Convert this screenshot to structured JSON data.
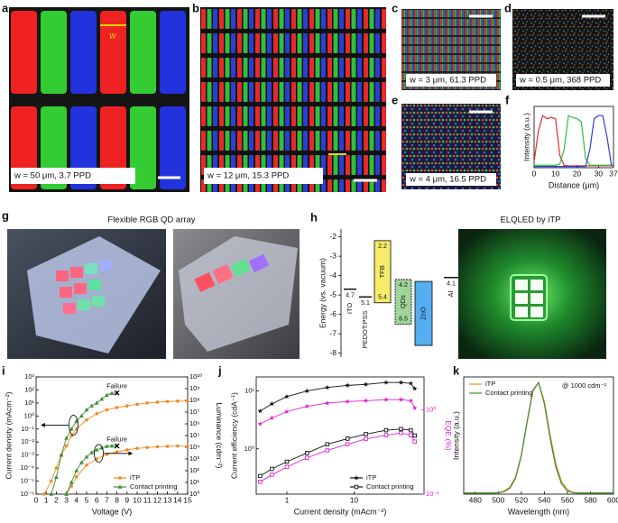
{
  "panels": {
    "a": {
      "label": "a",
      "annotation": "w",
      "caption": "w = 50 μm, 3.7 PPD"
    },
    "b": {
      "label": "b",
      "caption": "w = 12 μm, 15.3 PPD"
    },
    "c": {
      "label": "c",
      "caption": "w = 3 μm, 61.3 PPD"
    },
    "d": {
      "label": "d",
      "caption": "w = 0.5 μm, 368 PPD"
    },
    "e": {
      "label": "e",
      "caption": "w = 4 μm, 16.5 PPD"
    },
    "g": {
      "label": "g",
      "title": "Flexible RGB QD array"
    },
    "elqled": {
      "title": "ELQLED by iTP"
    }
  },
  "chart_data": [
    {
      "type": "line",
      "label": "f",
      "xlabel": "Distance (μm)",
      "ylabel": "Intensity (a.u.)",
      "x": [
        0,
        2,
        4,
        6,
        8,
        10,
        12,
        14,
        16,
        18,
        20,
        22,
        24,
        26,
        28,
        30,
        32,
        34,
        36,
        37
      ],
      "xlim": [
        0,
        37
      ],
      "xticks": [
        0,
        10,
        20,
        30,
        37
      ],
      "ylim": [
        0,
        1
      ],
      "series": [
        {
          "color": "#e8282b",
          "values": [
            0.1,
            0.6,
            0.85,
            0.8,
            0.82,
            0.8,
            0.2,
            0.04,
            0.03,
            0.03,
            0.03,
            0.03,
            0.03,
            0.03,
            0.03,
            0.03,
            0.03,
            0.03,
            0.03,
            0.03
          ]
        },
        {
          "color": "#2fbf3a",
          "values": [
            0.04,
            0.04,
            0.04,
            0.04,
            0.04,
            0.04,
            0.06,
            0.3,
            0.85,
            0.82,
            0.8,
            0.75,
            0.15,
            0.04,
            0.04,
            0.04,
            0.04,
            0.04,
            0.04,
            0.04
          ]
        },
        {
          "color": "#2a3fd6",
          "values": [
            0.02,
            0.02,
            0.02,
            0.02,
            0.02,
            0.02,
            0.02,
            0.02,
            0.02,
            0.02,
            0.02,
            0.02,
            0.02,
            0.3,
            0.8,
            0.85,
            0.85,
            0.5,
            0.05,
            0.03
          ]
        }
      ]
    },
    {
      "type": "energy",
      "label": "h",
      "ylabel": "Energy (vs. vacuum)",
      "ylim": [
        -8.2,
        -1.6
      ],
      "yticks": [
        -2,
        -3,
        -4,
        -5,
        -6,
        -7,
        -8
      ],
      "categories": [
        "ITO",
        "PEDOT:PSS",
        "TFB",
        "QDs",
        "ZnO",
        "Al"
      ],
      "top": [
        null,
        null,
        -2.2,
        -4.2,
        -4.3,
        null
      ],
      "bottom": [
        -4.7,
        -5.1,
        -5.4,
        -6.5,
        -7.6,
        -4.1
      ],
      "top_labels": [
        null,
        null,
        "2.2",
        "4.2",
        null,
        null
      ],
      "bottom_labels": [
        "4.7",
        "5.1",
        "5.4",
        "6.5",
        null,
        "4.1"
      ],
      "colors": [
        null,
        null,
        "#f5ec6a",
        "#9fd49a",
        "#55aef0",
        null
      ]
    },
    {
      "type": "line",
      "label": "i",
      "xlabel": "Voltage (V)",
      "ylabel": "Current density (mAcm⁻²)",
      "y2label": "Luminance (cdm⁻²)",
      "xlim": [
        0,
        15
      ],
      "xticks": [
        0,
        1,
        2,
        3,
        4,
        5,
        6,
        7,
        8,
        9,
        10,
        11,
        12,
        13,
        14,
        15
      ],
      "ylog": true,
      "ylim": [
        1e-06,
        1000
      ],
      "yticks": [
        {
          "value": 1e-06,
          "label": "10⁻⁶"
        },
        {
          "value": 1e-05,
          "label": "10⁻⁵"
        },
        {
          "value": 0.0001,
          "label": "10⁻⁴"
        },
        {
          "value": 0.001,
          "label": "10⁻³"
        },
        {
          "value": 0.01,
          "label": "10⁻²"
        },
        {
          "value": 0.1,
          "label": "10⁻¹"
        },
        {
          "value": 1,
          "label": "10⁰"
        },
        {
          "value": 10,
          "label": "10¹"
        },
        {
          "value": 100,
          "label": "10²"
        },
        {
          "value": 1000,
          "label": "10³"
        }
      ],
      "y2log": true,
      "y2lim": [
        1,
        10000000000
      ],
      "y2ticks": [
        {
          "value": 1,
          "label": "10⁰"
        },
        {
          "value": 10,
          "label": "10¹"
        },
        {
          "value": 100,
          "label": "10²"
        },
        {
          "value": 1000,
          "label": "10³"
        },
        {
          "value": 10000,
          "label": "10⁴"
        },
        {
          "value": 100000,
          "label": "10⁵"
        },
        {
          "value": 1000000,
          "label": "10⁶"
        },
        {
          "value": 10000000,
          "label": "10⁷"
        },
        {
          "value": 100000000,
          "label": "10⁸"
        },
        {
          "value": 1000000000,
          "label": "10⁹"
        },
        {
          "value": 10000000000,
          "label": "10¹⁰"
        }
      ],
      "legend": "lower right",
      "series": [
        {
          "name": "iTP",
          "color": "#f08a24",
          "marker": "circle",
          "x": [
            0.8,
            1.5,
            2,
            2.5,
            3,
            3.5,
            4,
            5,
            6,
            7,
            8,
            9,
            10,
            11,
            12,
            13,
            14,
            15
          ],
          "values": [
            1e-06,
            1e-05,
            0.0001,
            0.001,
            0.005,
            0.03,
            0.1,
            0.5,
            1.5,
            3,
            4.5,
            6,
            8,
            10,
            11.5,
            13,
            14,
            14
          ]
        },
        {
          "name": "Contact printing",
          "color": "#3a8f3a",
          "marker": "triangle",
          "end_label": "Failure",
          "x": [
            1.5,
            2,
            2.5,
            3,
            3.5,
            4,
            4.5,
            5,
            5.5,
            6,
            6.5,
            7,
            7.5,
            8
          ],
          "values": [
            1e-06,
            2e-05,
            0.001,
            0.02,
            0.1,
            0.4,
            1,
            3,
            6,
            10,
            20,
            40,
            55,
            60
          ]
        },
        {
          "color": "#f08a24",
          "marker": "circle",
          "axis": "y2",
          "x": [
            3,
            3.5,
            4,
            5,
            6,
            7,
            8,
            9,
            10,
            11,
            12,
            13,
            14,
            15
          ],
          "values": [
            1,
            5,
            30,
            300,
            1000,
            2500,
            4000,
            6000,
            8000,
            9500,
            11000,
            12000,
            13000,
            12000
          ]
        },
        {
          "color": "#3a8f3a",
          "marker": "triangle",
          "axis": "y2",
          "end_label": "Failure",
          "x": [
            3,
            3.5,
            4,
            4.5,
            5,
            5.5,
            6,
            6.5,
            7,
            7.5,
            8
          ],
          "values": [
            1,
            10,
            100,
            500,
            1500,
            3500,
            6000,
            9000,
            12000,
            13000,
            13000
          ]
        }
      ]
    },
    {
      "type": "line",
      "label": "j",
      "xlabel": "Current density (mAcm⁻²)",
      "ylabel": "Current efficiency (cdA⁻¹)",
      "y2label": "EQE (%)",
      "y2color": "#e020d0",
      "xlog": true,
      "xlim": [
        0.35,
        110
      ],
      "xticks": [
        1,
        10
      ],
      "ylog": true,
      "ylim": [
        0.165,
        17.5
      ],
      "yticks": [
        {
          "value": 1,
          "label": "10⁰"
        },
        {
          "value": 10,
          "label": "10¹"
        }
      ],
      "y2log": true,
      "y2lim": [
        0.1,
        2.45
      ],
      "y2ticks": [
        {
          "value": 0.1,
          "label": "10⁻¹"
        },
        {
          "value": 1,
          "label": "10⁰"
        }
      ],
      "legend": "lower right",
      "x": [
        0.4,
        0.6,
        1,
        2,
        4,
        8,
        15,
        30,
        50,
        70,
        80
      ],
      "series": [
        {
          "name": "iTP",
          "color": "#111111",
          "marker": "star",
          "values": [
            4.5,
            6,
            8,
            10,
            11.5,
            12.5,
            13,
            14,
            14,
            13.5,
            11
          ]
        },
        {
          "color": "#e020d0",
          "marker": "star",
          "axis": "y2",
          "values": [
            0.68,
            0.8,
            0.95,
            1.1,
            1.2,
            1.25,
            1.28,
            1.32,
            1.32,
            1.28,
            1.05
          ]
        },
        {
          "name": "Contact printing",
          "color": "#111111",
          "marker": "square",
          "values": [
            0.34,
            0.45,
            0.6,
            0.85,
            1.2,
            1.5,
            1.8,
            2.1,
            2.2,
            2.1,
            1.7
          ]
        },
        {
          "color": "#e020d0",
          "marker": "square",
          "axis": "y2",
          "values": [
            0.14,
            0.17,
            0.21,
            0.27,
            0.33,
            0.39,
            0.45,
            0.5,
            0.53,
            0.5,
            0.42
          ]
        }
      ]
    },
    {
      "type": "line",
      "label": "k",
      "xlabel": "Wavelength (nm)",
      "ylabel": "Intensity (a.u.)",
      "annotation": "@ 1000 cdm⁻²",
      "x": [
        470,
        475,
        480,
        485,
        490,
        495,
        500,
        505,
        510,
        515,
        520,
        525,
        530,
        535,
        540,
        545,
        550,
        555,
        560,
        565,
        570,
        575,
        580,
        585,
        590,
        595,
        600
      ],
      "xlim": [
        470,
        600
      ],
      "xticks": [
        480,
        500,
        520,
        540,
        560,
        580,
        600
      ],
      "ylim": [
        0,
        1.05
      ],
      "legend": "upper left",
      "series": [
        {
          "name": "iTP",
          "color": "#f08a24",
          "values": [
            0.01,
            0.01,
            0.01,
            0.01,
            0.01,
            0.01,
            0.012,
            0.02,
            0.05,
            0.14,
            0.34,
            0.64,
            0.92,
            1.0,
            0.83,
            0.53,
            0.27,
            0.11,
            0.04,
            0.015,
            0.01,
            0.01,
            0.01,
            0.01,
            0.01,
            0.01,
            0.01
          ]
        },
        {
          "name": "Contact printing",
          "color": "#3a8f3a",
          "values": [
            0.01,
            0.01,
            0.01,
            0.01,
            0.01,
            0.01,
            0.013,
            0.025,
            0.06,
            0.15,
            0.35,
            0.65,
            0.93,
            1.0,
            0.81,
            0.5,
            0.24,
            0.09,
            0.03,
            0.012,
            0.01,
            0.01,
            0.01,
            0.01,
            0.01,
            0.01,
            0.01
          ]
        }
      ]
    }
  ]
}
